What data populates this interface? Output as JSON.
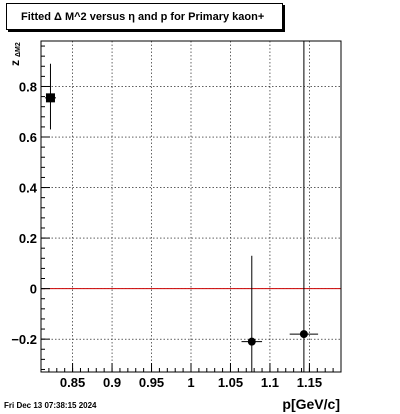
{
  "chart_title": "Fitted Δ M^2 versus η and p for Primary kaon+",
  "timestamp": "Fri Dec 13 07:38:15 2024",
  "chart_data": {
    "type": "scatter",
    "title": "Fitted Δ M^2 versus η and p for Primary kaon+",
    "xlabel": "p[GeV/c]",
    "ylabel": "z",
    "ylabel_subscript": "ΔM2",
    "xlim": [
      0.81,
      1.19
    ],
    "ylim": [
      -0.33,
      0.98
    ],
    "xticks": [
      0.85,
      0.9,
      0.95,
      1,
      1.05,
      1.1,
      1.15
    ],
    "xtick_labels": [
      "0.85",
      "0.9",
      "0.95",
      "1",
      "1.05",
      "1.1",
      "1.15"
    ],
    "yticks": [
      -0.2,
      0,
      0.2,
      0.4,
      0.6,
      0.8
    ],
    "ytick_labels": [
      "−0.2",
      "0",
      "0.2",
      "0.4",
      "0.6",
      "0.8"
    ],
    "grid": true,
    "reference_line": {
      "y": 0,
      "color": "#cc0000"
    },
    "points": [
      {
        "x": 0.822,
        "y": 0.755,
        "xerr": 0.007,
        "yerr_low": 0.125,
        "yerr_high": 0.135,
        "marker": "square"
      },
      {
        "x": 1.077,
        "y": -0.21,
        "xerr": 0.013,
        "yerr_low": 0.14,
        "yerr_high": 0.34,
        "marker": "circle"
      },
      {
        "x": 1.143,
        "y": -0.18,
        "xerr": 0.018,
        "yerr_low": 0.16,
        "yerr_high": 1.2,
        "marker": "circle"
      }
    ]
  }
}
